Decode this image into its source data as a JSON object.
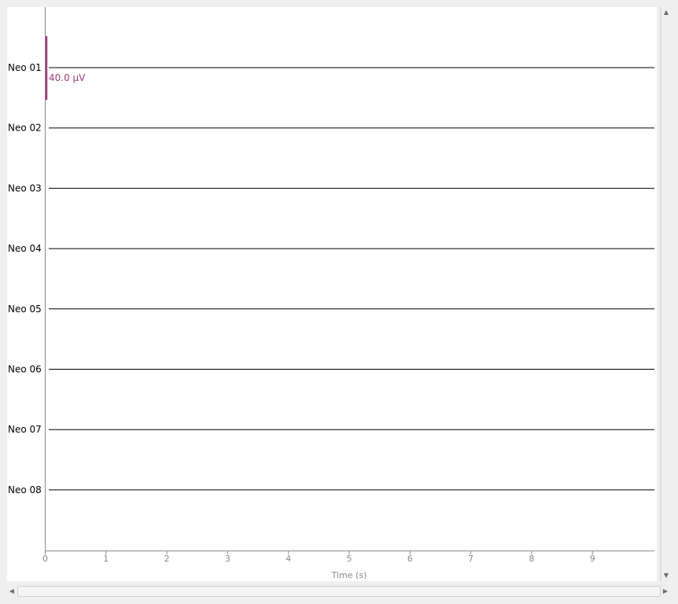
{
  "chart_data": {
    "type": "line",
    "xlabel": "Time (s)",
    "xlim": [
      0,
      10
    ],
    "x_ticks": [
      "0",
      "1",
      "2",
      "3",
      "4",
      "5",
      "6",
      "7",
      "8",
      "9"
    ],
    "channels": [
      "Neo 01",
      "Neo 02",
      "Neo 03",
      "Neo 04",
      "Neo 05",
      "Neo 06",
      "Neo 07",
      "Neo 08"
    ],
    "series": [
      {
        "name": "Neo 01",
        "values": [
          0,
          0
        ]
      },
      {
        "name": "Neo 02",
        "values": [
          0,
          0
        ]
      },
      {
        "name": "Neo 03",
        "values": [
          0,
          0
        ]
      },
      {
        "name": "Neo 04",
        "values": [
          0,
          0
        ]
      },
      {
        "name": "Neo 05",
        "values": [
          0,
          0
        ]
      },
      {
        "name": "Neo 06",
        "values": [
          0,
          0
        ]
      },
      {
        "name": "Neo 07",
        "values": [
          0,
          0
        ]
      },
      {
        "name": "Neo 08",
        "values": [
          0,
          0
        ]
      }
    ],
    "x": [
      0,
      10
    ],
    "scale_bar": {
      "label": "40.0 µV",
      "color": "#a0407a"
    },
    "trace_color": "#000000",
    "axis_color": "#8a8a8a",
    "grid": false
  },
  "icons": {
    "scroll_up": "▲",
    "scroll_down": "▼",
    "scroll_left": "◀",
    "scroll_right": "▶"
  }
}
